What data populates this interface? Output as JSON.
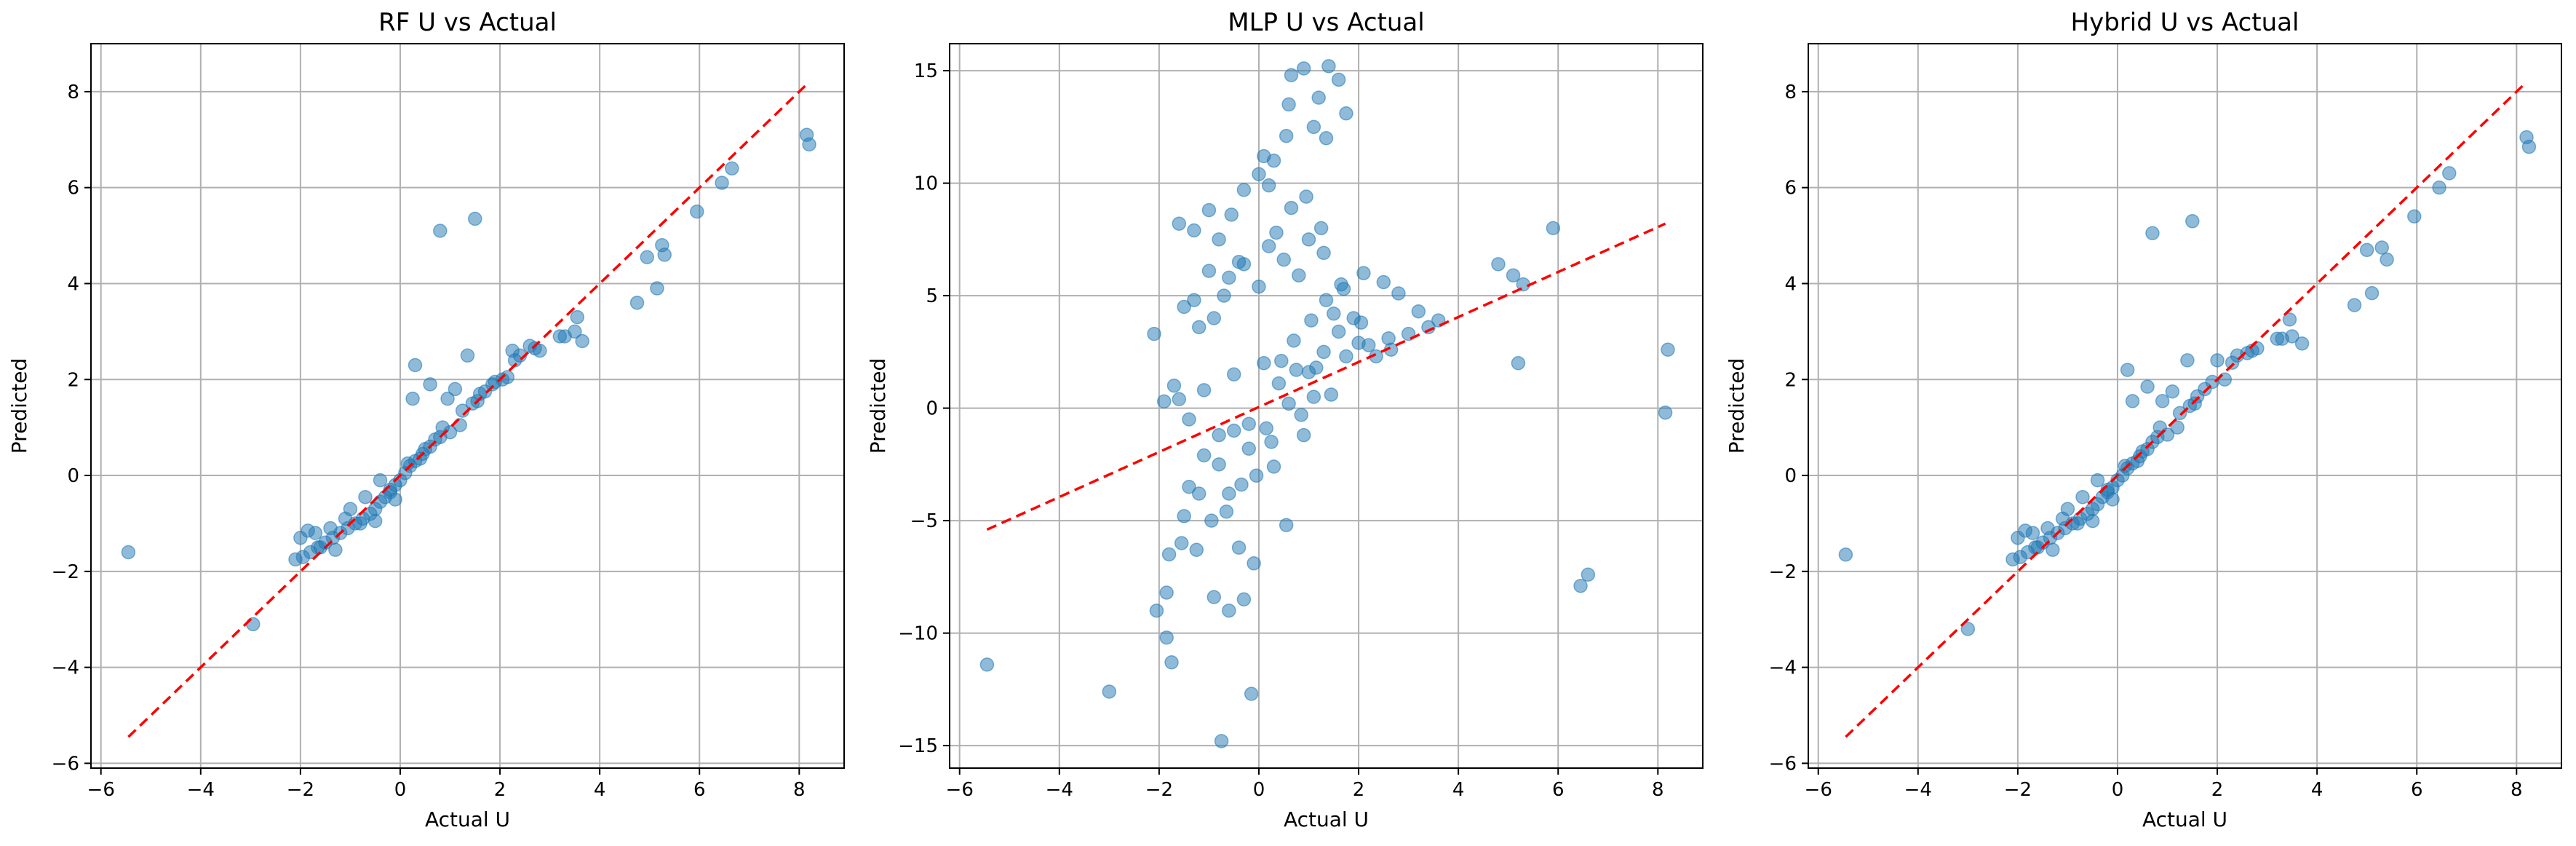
{
  "chart_data": [
    {
      "type": "scatter",
      "title": "RF U vs Actual",
      "xlabel": "Actual U",
      "ylabel": "Predicted",
      "xlim": [
        -6.2,
        8.9
      ],
      "ylim": [
        -6.1,
        9.0
      ],
      "xticks": [
        -6,
        -4,
        -2,
        0,
        2,
        4,
        6,
        8
      ],
      "yticks": [
        -6,
        -4,
        -2,
        0,
        2,
        4,
        6,
        8
      ],
      "grid": true,
      "point_color": "#1f77b4",
      "ref_line": {
        "x": [
          -5.45,
          8.15
        ],
        "y": [
          -5.45,
          8.15
        ],
        "color": "#ff0000",
        "style": "dashed"
      },
      "points": {
        "x": [
          -5.45,
          -2.95,
          0.8,
          1.5,
          0.3,
          8.15,
          8.2,
          6.65,
          6.45,
          5.95,
          5.25,
          5.3,
          4.95,
          5.15,
          4.75,
          3.65,
          3.5,
          3.3,
          3.55,
          2.8,
          2.6,
          2.4,
          2.15,
          2.25,
          2.05,
          1.35,
          0.25,
          0.6,
          0.95,
          1.1,
          1.25,
          1.45,
          1.6,
          1.7,
          1.85,
          1.0,
          0.8,
          0.6,
          0.45,
          0.3,
          0.2,
          0.1,
          0.0,
          -0.1,
          -0.2,
          -0.3,
          -0.4,
          -0.5,
          -0.6,
          -0.75,
          -0.9,
          -1.05,
          -1.2,
          -1.35,
          -1.5,
          -1.65,
          -1.8,
          -1.95,
          -2.1,
          -1.7,
          -1.4,
          -1.1,
          -0.8,
          -0.5,
          -0.2,
          0.15,
          0.5,
          0.85,
          -2.0,
          -1.85,
          -1.6,
          -1.3,
          -1.0,
          -0.7,
          -0.4,
          -0.1,
          0.4,
          0.7,
          1.2,
          1.55,
          1.9,
          2.3,
          2.7,
          3.2
        ],
        "y": [
          -1.6,
          -3.1,
          5.1,
          5.35,
          2.3,
          7.1,
          6.9,
          6.4,
          6.1,
          5.5,
          4.8,
          4.6,
          4.55,
          3.9,
          3.6,
          2.8,
          3.0,
          2.9,
          3.3,
          2.6,
          2.7,
          2.5,
          2.05,
          2.6,
          2.0,
          2.5,
          1.6,
          1.9,
          1.6,
          1.8,
          1.35,
          1.5,
          1.7,
          1.75,
          1.9,
          0.9,
          0.8,
          0.6,
          0.45,
          0.3,
          0.2,
          0.05,
          -0.1,
          -0.2,
          -0.35,
          -0.45,
          -0.55,
          -0.7,
          -0.8,
          -0.9,
          -1.0,
          -1.1,
          -1.2,
          -1.3,
          -1.4,
          -1.5,
          -1.6,
          -1.7,
          -1.75,
          -1.2,
          -1.1,
          -0.9,
          -1.0,
          -0.95,
          -0.3,
          0.25,
          0.55,
          1.0,
          -1.3,
          -1.15,
          -1.5,
          -1.55,
          -0.7,
          -0.45,
          -0.1,
          -0.5,
          0.35,
          0.75,
          1.05,
          1.55,
          1.95,
          2.4,
          2.65,
          2.9
        ]
      }
    },
    {
      "type": "scatter",
      "title": "MLP U vs Actual",
      "xlabel": "Actual U",
      "ylabel": "Predicted",
      "xlim": [
        -6.2,
        8.9
      ],
      "ylim": [
        -16.0,
        16.2
      ],
      "xticks": [
        -6,
        -4,
        -2,
        0,
        2,
        4,
        6,
        8
      ],
      "yticks": [
        -15,
        -10,
        -5,
        0,
        5,
        10,
        15
      ],
      "grid": true,
      "point_color": "#1f77b4",
      "ref_line": {
        "x": [
          -5.45,
          8.15
        ],
        "y": [
          -5.4,
          8.2
        ],
        "color": "#ff0000",
        "style": "dashed"
      },
      "points": {
        "x": [
          -5.45,
          -3.0,
          -0.75,
          -0.15,
          -1.85,
          -1.75,
          0.65,
          0.9,
          0.55,
          1.4,
          1.6,
          1.75,
          1.2,
          1.35,
          1.1,
          0.6,
          0.3,
          0.0,
          -0.3,
          -0.55,
          -0.8,
          -1.0,
          -1.3,
          -1.6,
          -2.1,
          -1.5,
          -1.2,
          -0.9,
          -0.6,
          -0.3,
          0.2,
          0.5,
          0.8,
          1.0,
          1.3,
          1.7,
          2.1,
          2.5,
          2.8,
          3.2,
          3.6,
          4.8,
          5.1,
          5.3,
          5.9,
          5.2,
          6.45,
          6.6,
          8.2,
          8.15,
          -1.9,
          -1.7,
          -1.4,
          -1.1,
          -0.8,
          -0.5,
          -0.2,
          0.1,
          0.4,
          0.7,
          1.0,
          1.3,
          1.6,
          1.9,
          2.2,
          -2.05,
          -1.85,
          -1.55,
          -1.25,
          -0.95,
          -0.65,
          -0.35,
          -0.05,
          0.25,
          0.55,
          0.85,
          1.15,
          1.45,
          1.75,
          2.05,
          2.35,
          2.65,
          3.0,
          3.4,
          -1.4,
          -1.1,
          -0.8,
          -0.5,
          -0.2,
          0.15,
          0.45,
          0.75,
          1.05,
          1.35,
          1.65,
          -1.6,
          -1.3,
          -1.0,
          -0.7,
          -0.4,
          0.0,
          0.35,
          0.65,
          0.95,
          1.25,
          -0.9,
          -0.6,
          -0.3,
          -1.8,
          -1.2,
          -0.4,
          0.3,
          0.9,
          1.5,
          2.0,
          2.6,
          -1.5,
          -0.6,
          0.6,
          1.1,
          -0.1,
          0.1,
          0.2
        ],
        "y": [
          -11.4,
          -12.6,
          -14.8,
          -12.7,
          -10.2,
          -11.3,
          14.8,
          15.1,
          12.1,
          15.2,
          14.6,
          13.1,
          13.8,
          12.0,
          12.5,
          13.5,
          11.0,
          10.4,
          9.7,
          8.6,
          7.5,
          8.8,
          7.9,
          8.2,
          3.3,
          4.5,
          3.6,
          4.0,
          5.8,
          6.4,
          7.2,
          6.6,
          5.9,
          7.5,
          6.9,
          5.3,
          6.0,
          5.6,
          5.1,
          4.3,
          3.9,
          6.4,
          5.9,
          5.5,
          8.0,
          2.0,
          -7.9,
          -7.4,
          2.6,
          -0.2,
          0.3,
          1.0,
          -0.5,
          0.8,
          -1.2,
          1.5,
          -0.7,
          2.0,
          1.1,
          3.0,
          1.6,
          2.5,
          3.4,
          4.0,
          2.8,
          -9.0,
          -8.2,
          -6.0,
          -6.3,
          -5.0,
          -4.6,
          -3.4,
          -3.0,
          -1.5,
          -5.2,
          -0.3,
          1.8,
          0.6,
          2.3,
          3.8,
          2.3,
          2.6,
          3.3,
          3.6,
          -3.5,
          -2.1,
          -2.5,
          -1.0,
          -1.8,
          -0.9,
          2.1,
          1.7,
          3.9,
          4.8,
          5.5,
          0.4,
          4.8,
          6.1,
          5.0,
          6.5,
          5.4,
          7.8,
          8.9,
          9.4,
          8.0,
          -8.4,
          -9.0,
          -8.5,
          -6.5,
          -3.8,
          -6.2,
          -2.6,
          -1.2,
          4.2,
          2.9,
          3.1,
          -4.8,
          -3.8,
          0.2,
          0.5,
          -6.9,
          11.2,
          9.9
        ]
      }
    },
    {
      "type": "scatter",
      "title": "Hybrid U vs Actual",
      "xlabel": "Actual U",
      "ylabel": "Predicted",
      "xlim": [
        -6.2,
        8.9
      ],
      "ylim": [
        -6.1,
        9.0
      ],
      "xticks": [
        -6,
        -4,
        -2,
        0,
        2,
        4,
        6,
        8
      ],
      "yticks": [
        -6,
        -4,
        -2,
        0,
        2,
        4,
        6,
        8
      ],
      "grid": true,
      "point_color": "#1f77b4",
      "ref_line": {
        "x": [
          -5.45,
          8.15
        ],
        "y": [
          -5.45,
          8.15
        ],
        "color": "#ff0000",
        "style": "dashed"
      },
      "points": {
        "x": [
          -5.45,
          -3.0,
          0.7,
          1.5,
          0.2,
          8.2,
          8.25,
          6.65,
          6.45,
          5.95,
          5.3,
          5.4,
          5.0,
          5.1,
          4.75,
          3.7,
          3.5,
          3.3,
          3.45,
          2.8,
          2.6,
          2.4,
          2.15,
          2.0,
          1.4,
          0.3,
          0.6,
          0.9,
          1.1,
          1.25,
          1.45,
          1.6,
          1.75,
          1.0,
          0.8,
          0.6,
          0.45,
          0.3,
          0.2,
          0.1,
          0.0,
          -0.1,
          -0.2,
          -0.3,
          -0.4,
          -0.5,
          -0.6,
          -0.75,
          -0.9,
          -1.05,
          -1.2,
          -1.35,
          -1.5,
          -1.65,
          -1.8,
          -1.95,
          -2.1,
          -1.7,
          -1.4,
          -1.1,
          -0.8,
          -0.5,
          -0.2,
          0.15,
          0.5,
          0.85,
          -2.0,
          -1.85,
          -1.6,
          -1.3,
          -1.0,
          -0.7,
          -0.4,
          -0.1,
          0.4,
          0.7,
          1.2,
          1.55,
          1.9,
          2.3,
          2.7,
          3.2
        ],
        "y": [
          -1.65,
          -3.2,
          5.05,
          5.3,
          2.2,
          7.05,
          6.85,
          6.3,
          6.0,
          5.4,
          4.75,
          4.5,
          4.7,
          3.8,
          3.55,
          2.75,
          2.9,
          2.85,
          3.25,
          2.65,
          2.55,
          2.5,
          2.0,
          2.4,
          2.4,
          1.55,
          1.85,
          1.55,
          1.75,
          1.3,
          1.45,
          1.65,
          1.8,
          0.85,
          0.8,
          0.55,
          0.4,
          0.25,
          0.15,
          0.0,
          -0.1,
          -0.25,
          -0.35,
          -0.45,
          -0.6,
          -0.7,
          -0.8,
          -0.9,
          -1.0,
          -1.1,
          -1.2,
          -1.3,
          -1.4,
          -1.5,
          -1.6,
          -1.7,
          -1.75,
          -1.2,
          -1.1,
          -0.9,
          -1.0,
          -0.95,
          -0.3,
          0.2,
          0.5,
          1.0,
          -1.3,
          -1.15,
          -1.5,
          -1.55,
          -0.7,
          -0.45,
          -0.1,
          -0.5,
          0.3,
          0.7,
          1.0,
          1.5,
          1.95,
          2.35,
          2.6,
          2.85
        ]
      }
    }
  ]
}
